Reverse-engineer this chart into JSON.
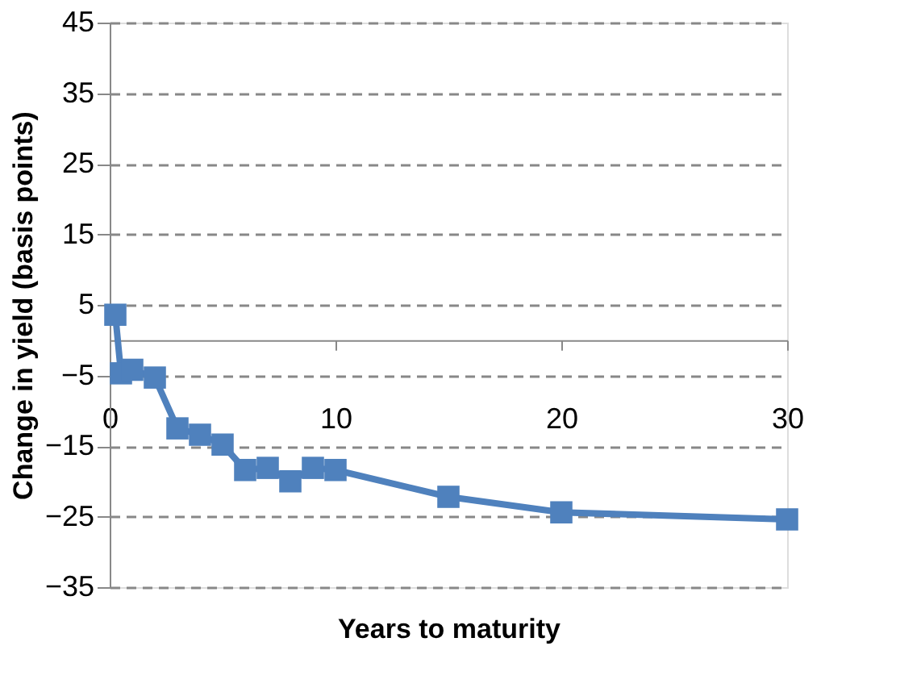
{
  "chart_data": {
    "type": "line",
    "xlabel": "Years to maturity",
    "ylabel": "Change in yield (basis points)",
    "x": [
      0.25,
      0.5,
      1,
      2,
      3,
      4,
      5,
      6,
      7,
      8,
      9,
      10,
      15,
      20,
      30
    ],
    "series": [
      {
        "color": "#4f81bd",
        "values": [
          3.6,
          -4.7,
          -4.2,
          -5.3,
          -12.5,
          -13.4,
          -14.8,
          -18.4,
          -18.1,
          -20,
          -18.1,
          -18.4,
          -22.2,
          -24.4,
          -25.4
        ]
      }
    ],
    "xlim": [
      0,
      30
    ],
    "xticks": [
      0,
      10,
      20,
      30
    ],
    "ylim": [
      -35,
      45
    ],
    "yticks": [
      -35,
      -25,
      -15,
      -5,
      5,
      15,
      25,
      35,
      45
    ],
    "grid": "y",
    "marker": "square",
    "line_style": "solid",
    "legend": false
  }
}
